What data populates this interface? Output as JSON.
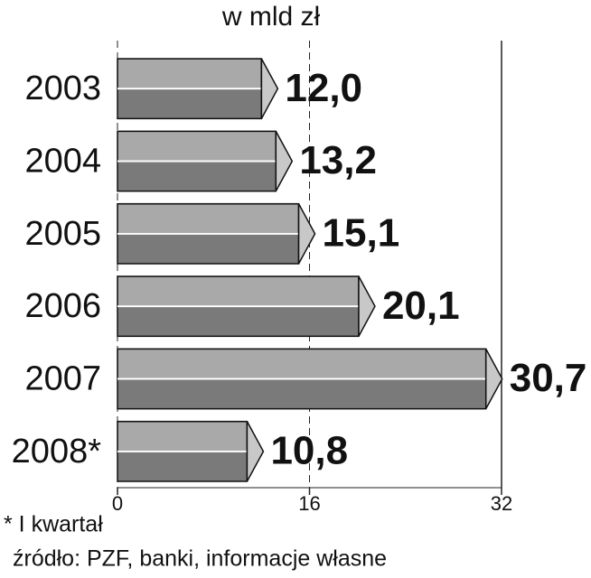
{
  "chart_data": {
    "type": "hbar",
    "title": "w mld zł",
    "categories": [
      "2003",
      "2004",
      "2005",
      "2006",
      "2007",
      "2008*"
    ],
    "values": [
      12.0,
      13.2,
      15.1,
      20.1,
      30.7,
      10.8
    ],
    "value_labels": [
      "12,0",
      "13,2",
      "15,1",
      "20,1",
      "30,7",
      "10,8"
    ],
    "color": "#7a7a7a",
    "xlim": [
      0,
      32
    ],
    "xticks": [
      0,
      16,
      32
    ],
    "grid": true,
    "footnote": "* I kwartał",
    "source": "źródło: PZF, banki, informacje własne"
  }
}
